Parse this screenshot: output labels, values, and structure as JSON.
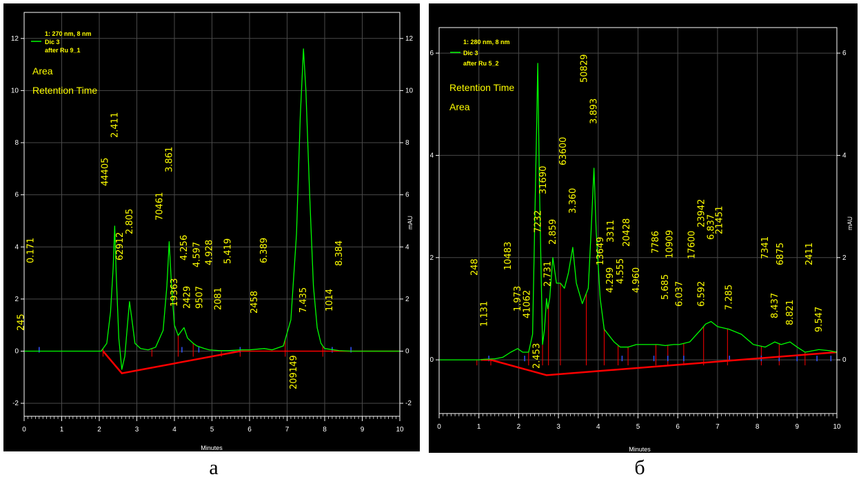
{
  "panels": [
    {
      "panel_label": "а",
      "legend": {
        "header": "1: 270 nm, 8 nm",
        "series": "Dic 3",
        "sample": "after Ru 9_1",
        "line1": "Area",
        "line2": "Retention Time"
      },
      "colors": {
        "background": "#000000",
        "trace": "#00ff00",
        "baseline": "#ff0000",
        "labels": "#ffff00",
        "markers": "#0000ff"
      },
      "chart_data": {
        "type": "line",
        "xlabel": "Minutes",
        "ylabel": "mAU",
        "xlim": [
          0,
          10
        ],
        "ylim": [
          -2.5,
          13
        ],
        "x_ticks": [
          0,
          1,
          2,
          3,
          4,
          5,
          6,
          7,
          8,
          9,
          10
        ],
        "y_ticks": [
          -2,
          0,
          2,
          4,
          6,
          8,
          10,
          12
        ],
        "grid": true,
        "trace": [
          [
            0,
            0
          ],
          [
            0.5,
            0
          ],
          [
            1,
            0
          ],
          [
            1.5,
            0
          ],
          [
            2.05,
            0
          ],
          [
            2.2,
            0.3
          ],
          [
            2.3,
            1.5
          ],
          [
            2.37,
            3.2
          ],
          [
            2.411,
            4.8
          ],
          [
            2.45,
            3.0
          ],
          [
            2.52,
            0.5
          ],
          [
            2.6,
            -0.7
          ],
          [
            2.68,
            -0.2
          ],
          [
            2.75,
            1.0
          ],
          [
            2.805,
            1.9
          ],
          [
            2.87,
            1.2
          ],
          [
            2.95,
            0.3
          ],
          [
            3.1,
            0.1
          ],
          [
            3.3,
            0.05
          ],
          [
            3.5,
            0.15
          ],
          [
            3.7,
            0.8
          ],
          [
            3.8,
            2.5
          ],
          [
            3.861,
            4.2
          ],
          [
            3.92,
            2.6
          ],
          [
            4.0,
            1.0
          ],
          [
            4.1,
            0.6
          ],
          [
            4.2,
            0.8
          ],
          [
            4.256,
            0.9
          ],
          [
            4.35,
            0.5
          ],
          [
            4.5,
            0.3
          ],
          [
            4.597,
            0.2
          ],
          [
            4.8,
            0.1
          ],
          [
            4.928,
            0.05
          ],
          [
            5.2,
            0.02
          ],
          [
            5.419,
            0.02
          ],
          [
            5.8,
            0.05
          ],
          [
            6.0,
            0.05
          ],
          [
            6.389,
            0.1
          ],
          [
            6.6,
            0.05
          ],
          [
            6.9,
            0.2
          ],
          [
            7.1,
            1.2
          ],
          [
            7.25,
            4.5
          ],
          [
            7.35,
            9.0
          ],
          [
            7.435,
            11.6
          ],
          [
            7.5,
            10.0
          ],
          [
            7.6,
            6.0
          ],
          [
            7.7,
            2.5
          ],
          [
            7.8,
            0.9
          ],
          [
            7.9,
            0.3
          ],
          [
            8.0,
            0.1
          ],
          [
            8.384,
            0.02
          ],
          [
            8.7,
            0
          ],
          [
            9.0,
            0
          ],
          [
            9.5,
            0
          ],
          [
            10,
            0
          ]
        ],
        "baseline": [
          [
            2.1,
            0
          ],
          [
            2.6,
            -0.85
          ],
          [
            5.75,
            0
          ]
        ],
        "peak_labels": [
          {
            "rt": "0.171",
            "area": "245",
            "x": 0.171
          },
          {
            "rt": "2.411",
            "area": "44405",
            "x": 2.411
          },
          {
            "rt": "2.805",
            "area": "62912",
            "x": 2.805
          },
          {
            "rt": "3.861",
            "area": "70461",
            "x": 3.861
          },
          {
            "rt": "4.256",
            "area": "19363",
            "x": 4.256
          },
          {
            "rt": "4.597",
            "area": "2429",
            "x": 4.597
          },
          {
            "rt": "4.928",
            "area": "9507",
            "x": 4.928
          },
          {
            "rt": "5.419",
            "area": "2081",
            "x": 5.419
          },
          {
            "rt": "6.389",
            "area": "2458",
            "x": 6.389
          },
          {
            "rt": "7.435",
            "area": "209149",
            "x": 7.435
          },
          {
            "rt": "8.384",
            "area": "1014",
            "x": 8.384
          }
        ],
        "red_markers": [
          2.1,
          3.4,
          4.1,
          4.5,
          5.25,
          5.75,
          6.95,
          7.95
        ],
        "blue_markers": [
          0.4,
          4.2,
          4.65,
          5.75,
          8.2,
          8.7
        ]
      }
    },
    {
      "panel_label": "б",
      "legend": {
        "header": "1: 280 nm, 8 nm",
        "series": "Dic 3",
        "sample": "after Ru 5_2",
        "line1": "Retention Time",
        "line2": "Area"
      },
      "colors": {
        "background": "#000000",
        "trace": "#00ff00",
        "baseline": "#ff0000",
        "labels": "#ffff00",
        "markers": "#0000ff"
      },
      "chart_data": {
        "type": "line",
        "xlabel": "Minutes",
        "ylabel": "mAU",
        "xlim": [
          0,
          10
        ],
        "ylim": [
          -1.05,
          6.5
        ],
        "x_ticks": [
          0,
          1,
          2,
          3,
          4,
          5,
          6,
          7,
          8,
          9,
          10
        ],
        "y_ticks": [
          0,
          2,
          4,
          6
        ],
        "grid": true,
        "trace": [
          [
            0,
            0
          ],
          [
            0.5,
            0
          ],
          [
            1.0,
            0
          ],
          [
            1.131,
            0.01
          ],
          [
            1.4,
            0.02
          ],
          [
            1.6,
            0.05
          ],
          [
            1.8,
            0.15
          ],
          [
            1.973,
            0.22
          ],
          [
            2.1,
            0.15
          ],
          [
            2.25,
            0.15
          ],
          [
            2.35,
            0.5
          ],
          [
            2.45,
            4.5
          ],
          [
            2.48,
            5.8
          ],
          [
            2.52,
            3.5
          ],
          [
            2.6,
            0.3
          ],
          [
            2.65,
            0.6
          ],
          [
            2.7,
            1.2
          ],
          [
            2.731,
            1.0
          ],
          [
            2.78,
            1.2
          ],
          [
            2.859,
            2.0
          ],
          [
            2.95,
            1.5
          ],
          [
            3.05,
            1.5
          ],
          [
            3.15,
            1.4
          ],
          [
            3.25,
            1.7
          ],
          [
            3.36,
            2.2
          ],
          [
            3.45,
            1.5
          ],
          [
            3.6,
            1.1
          ],
          [
            3.75,
            1.4
          ],
          [
            3.82,
            2.5
          ],
          [
            3.893,
            3.75
          ],
          [
            3.95,
            2.5
          ],
          [
            4.05,
            1.2
          ],
          [
            4.15,
            0.6
          ],
          [
            4.299,
            0.45
          ],
          [
            4.4,
            0.35
          ],
          [
            4.555,
            0.25
          ],
          [
            4.75,
            0.25
          ],
          [
            4.96,
            0.3
          ],
          [
            5.2,
            0.3
          ],
          [
            5.5,
            0.3
          ],
          [
            5.685,
            0.28
          ],
          [
            5.9,
            0.3
          ],
          [
            6.037,
            0.3
          ],
          [
            6.3,
            0.35
          ],
          [
            6.592,
            0.6
          ],
          [
            6.7,
            0.7
          ],
          [
            6.837,
            0.75
          ],
          [
            7.0,
            0.65
          ],
          [
            7.285,
            0.6
          ],
          [
            7.6,
            0.5
          ],
          [
            7.9,
            0.3
          ],
          [
            8.2,
            0.25
          ],
          [
            8.437,
            0.35
          ],
          [
            8.6,
            0.3
          ],
          [
            8.821,
            0.35
          ],
          [
            9.0,
            0.25
          ],
          [
            9.2,
            0.15
          ],
          [
            9.547,
            0.2
          ],
          [
            9.8,
            0.18
          ],
          [
            10,
            0.15
          ]
        ],
        "baseline": [
          [
            1.05,
            0
          ],
          [
            1.3,
            0
          ],
          [
            2.7,
            -0.3
          ],
          [
            10,
            0.15
          ]
        ],
        "peak_labels": [
          {
            "rt": "1.131",
            "area": "248",
            "x": 1.131
          },
          {
            "rt": "1.973",
            "area": "10483",
            "x": 1.973
          },
          {
            "rt": "2.453",
            "area": "41062",
            "x": 2.453
          },
          {
            "rt": "2.731",
            "area": "7232",
            "x": 2.731
          },
          {
            "rt": "2.859",
            "area": "31690",
            "x": 2.859
          },
          {
            "rt": "3.360",
            "area": "63600",
            "x": 3.36
          },
          {
            "rt": "3.893",
            "area": "50829",
            "x": 3.893
          },
          {
            "rt": "4.299",
            "area": "13649",
            "x": 4.299
          },
          {
            "rt": "4.555",
            "area": "3311",
            "x": 4.555
          },
          {
            "rt": "4.960",
            "area": "20428",
            "x": 4.96
          },
          {
            "rt": "5.685",
            "area": "7786",
            "x": 5.685
          },
          {
            "rt": "6.037",
            "area": "10909",
            "x": 6.037
          },
          {
            "rt": "6.592",
            "area": "17600",
            "x": 6.592
          },
          {
            "rt": "6.837",
            "area": "23942",
            "x": 6.837
          },
          {
            "rt": "7.285",
            "area": "21451",
            "x": 7.285
          },
          {
            "rt": "8.437",
            "area": "7341",
            "x": 8.437
          },
          {
            "rt": "8.821",
            "area": "6875",
            "x": 8.821
          },
          {
            "rt": "9.547",
            "area": "2411",
            "x": 9.547
          }
        ],
        "red_markers": [
          0.95,
          1.3,
          2.25,
          2.6,
          2.75,
          3.05,
          3.7,
          4.15,
          4.5,
          4.75,
          5.45,
          5.75,
          6.15,
          6.65,
          7.25,
          8.1,
          8.55,
          9.2
        ],
        "blue_markers": [
          1.25,
          2.15,
          4.6,
          5.4,
          5.75,
          6.15,
          7.3,
          8.1,
          8.55,
          9.0,
          9.5,
          9.85
        ]
      }
    }
  ]
}
